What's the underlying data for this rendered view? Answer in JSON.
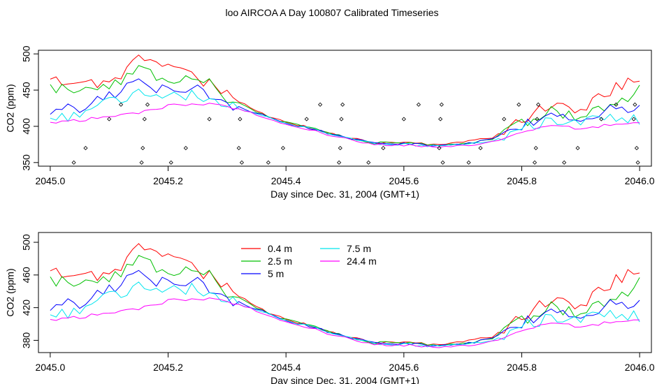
{
  "title": "loo AIRCOA A  Day 100807  Calibrated Timeseries",
  "colors": {
    "0.4 m": "#ff0000",
    "2.5 m": "#00c000",
    "5 m": "#0000ff",
    "7.5 m": "#00e5ee",
    "24.4 m": "#ff00ff"
  },
  "chart_data": [
    {
      "type": "line",
      "xlabel": "Day since Dec. 31, 2004 (GMT+1)",
      "ylabel": "CO2 (ppm)",
      "xlim": [
        2044.98,
        2046.02
      ],
      "ylim": [
        345,
        505
      ],
      "xticks": [
        "2045.0",
        "2045.2",
        "2045.4",
        "2045.6",
        "2045.8",
        "2046.0"
      ],
      "yticks": [
        "350",
        "400",
        "450",
        "500"
      ],
      "grid": false,
      "series_profile": {
        "x": [
          2045.0,
          2045.05,
          2045.1,
          2045.15,
          2045.2,
          2045.25,
          2045.3,
          2045.35,
          2045.4,
          2045.45,
          2045.5,
          2045.55,
          2045.6,
          2045.65,
          2045.7,
          2045.75,
          2045.8,
          2045.85,
          2045.9,
          2045.95,
          2046.0
        ],
        "0.4 m": [
          460,
          468,
          455,
          500,
          485,
          468,
          445,
          420,
          405,
          397,
          385,
          377,
          378,
          375,
          378,
          385,
          410,
          432,
          420,
          450,
          470
        ],
        "2.5 m": [
          450,
          455,
          450,
          485,
          460,
          470,
          440,
          420,
          405,
          396,
          385,
          377,
          377,
          374,
          376,
          383,
          405,
          420,
          412,
          430,
          450
        ],
        "5 m": [
          420,
          425,
          440,
          460,
          450,
          455,
          432,
          418,
          404,
          395,
          385,
          377,
          376,
          374,
          375,
          382,
          400,
          415,
          410,
          422,
          425
        ],
        "7.5 m": [
          410,
          415,
          435,
          445,
          440,
          445,
          430,
          418,
          404,
          395,
          384,
          376,
          375,
          373,
          374,
          380,
          395,
          410,
          405,
          412,
          410
        ],
        "24.4 m": [
          405,
          408,
          415,
          418,
          428,
          432,
          428,
          416,
          403,
          393,
          383,
          375,
          374,
          372,
          373,
          378,
          392,
          402,
          396,
          402,
          405
        ]
      },
      "scatter_points": [
        [
          2045.04,
          350
        ],
        [
          2045.06,
          370
        ],
        [
          2045.1,
          410
        ],
        [
          2045.12,
          430
        ],
        [
          2045.155,
          350
        ],
        [
          2045.157,
          370
        ],
        [
          2045.16,
          410
        ],
        [
          2045.165,
          430
        ],
        [
          2045.205,
          350
        ],
        [
          2045.23,
          370
        ],
        [
          2045.27,
          410
        ],
        [
          2045.32,
          370
        ],
        [
          2045.322,
          410
        ],
        [
          2045.325,
          350
        ],
        [
          2045.37,
          350
        ],
        [
          2045.395,
          370
        ],
        [
          2045.435,
          410
        ],
        [
          2045.458,
          430
        ],
        [
          2045.49,
          350
        ],
        [
          2045.492,
          370
        ],
        [
          2045.494,
          410
        ],
        [
          2045.496,
          430
        ],
        [
          2045.54,
          350
        ],
        [
          2045.565,
          370
        ],
        [
          2045.6,
          410
        ],
        [
          2045.625,
          430
        ],
        [
          2045.66,
          370
        ],
        [
          2045.662,
          410
        ],
        [
          2045.664,
          430
        ],
        [
          2045.666,
          350
        ],
        [
          2045.71,
          350
        ],
        [
          2045.73,
          370
        ],
        [
          2045.77,
          410
        ],
        [
          2045.795,
          430
        ],
        [
          2045.822,
          350
        ],
        [
          2045.824,
          370
        ],
        [
          2045.826,
          410
        ],
        [
          2045.828,
          430
        ],
        [
          2045.872,
          350
        ],
        [
          2045.895,
          370
        ],
        [
          2045.935,
          410
        ],
        [
          2045.96,
          430
        ],
        [
          2045.99,
          410
        ],
        [
          2045.992,
          430
        ],
        [
          2045.995,
          370
        ],
        [
          2045.997,
          350
        ]
      ]
    },
    {
      "type": "line",
      "xlabel": "Day since Dec. 31, 2004 (GMT+1)",
      "ylabel": "CO2 (ppm)",
      "xlim": [
        2044.98,
        2046.02
      ],
      "ylim": [
        365,
        512
      ],
      "xticks": [
        "2045.0",
        "2045.2",
        "2045.4",
        "2045.6",
        "2045.8",
        "2046.0"
      ],
      "yticks": [
        "380",
        "420",
        "460",
        "500"
      ],
      "grid": false,
      "legend": {
        "placement": "top-center",
        "entries": [
          "0.4 m",
          "2.5 m",
          "5 m",
          "7.5 m",
          "24.4 m"
        ]
      }
    }
  ]
}
